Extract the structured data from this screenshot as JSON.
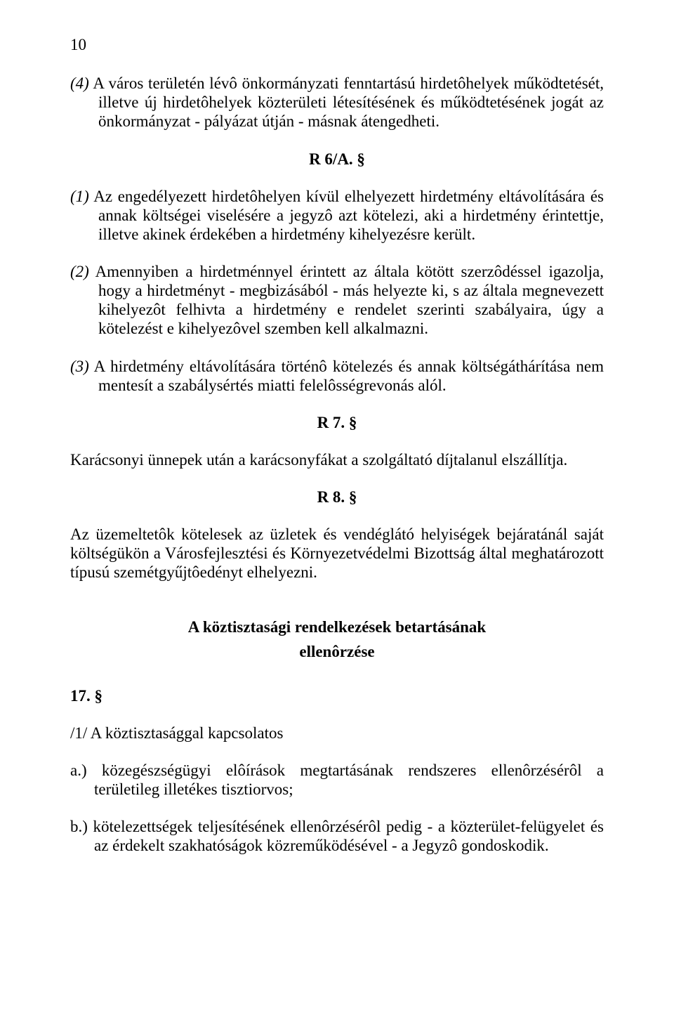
{
  "pageNumber": "10",
  "p4_marker": "(4)",
  "p4_text": " A város területén lévô önkormányzati fenntartású hirdetôhelyek működtetését, illetve új hirdetôhelyek közterületi létesítésének és működtetésének jogát az önkormányzat - pályázat útján - másnak átengedheti.",
  "heading_r6a": "R 6/A. §",
  "p1_marker": "(1)",
  "p1_text": " Az engedélyezett hirdetôhelyen kívül elhelyezett hirdetmény eltávolítására és annak költségei viselésére a jegyzô azt kötelezi, aki a hirdetmény érintettje, illetve akinek érdekében a hirdetmény kihelyezésre került.",
  "p2_marker": "(2)",
  "p2_text": " Amennyiben a hirdetménnyel érintett az általa kötött szerzôdéssel igazolja, hogy a hirdetményt - megbizásából - más helyezte ki, s az általa megnevezett kihelyezôt felhivta a hirdetmény e rendelet szerinti szabályaira, úgy a kötelezést e kihelyezôvel szemben kell alkalmazni.",
  "p3_marker": "(3)",
  "p3_text": " A hirdetmény eltávolítására történô kötelezés és annak költségáthárítása nem mentesít a szabálysértés miatti felelôsségrevonás alól.",
  "heading_r7": "R 7. §",
  "r7_text": "Karácsonyi ünnepek után a karácsonyfákat a szolgáltató díjtalanul elszállítja.",
  "heading_r8": "R 8. §",
  "r8_text": "Az üzemeltetôk kötelesek az üzletek és vendéglátó helyiségek bejáratánál saját költségükön a Városfejlesztési és Környezetvédelmi Bizottság által meghatározott típusú szemétgyűjtôedényt elhelyezni.",
  "section_title": "A köztisztasági rendelkezések betartásának",
  "section_subtitle": "ellenôrzése",
  "s17": "17. §",
  "s17_sub": "/1/ A köztisztasággal kapcsolatos",
  "item_a": "a.) közegészségügyi elôírások megtartásának rendszeres ellenôrzésérôl a területileg illetékes tisztiorvos;",
  "item_b": "b.) kötelezettségek teljesítésének ellenôrzésérôl pedig - a közterület-felügyelet és az érdekelt szakhatóságok közreműködésével - a Jegyzô gondoskodik."
}
